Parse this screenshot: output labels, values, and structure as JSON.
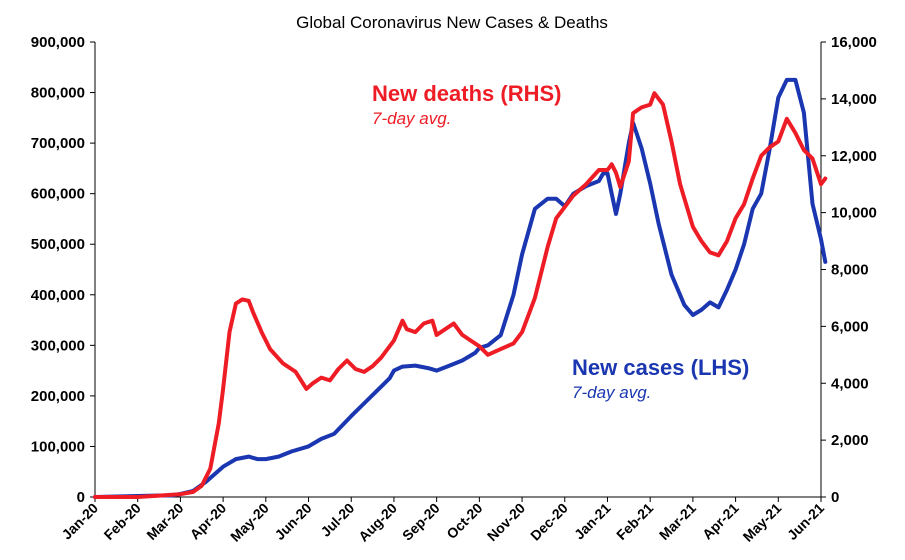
{
  "chart_data": {
    "type": "line",
    "title": "Global Coronavirus New Cases & Deaths",
    "x_labels": [
      "Jan-20",
      "Feb-20",
      "Mar-20",
      "Apr-20",
      "May-20",
      "Jun-20",
      "Jul-20",
      "Aug-20",
      "Sep-20",
      "Oct-20",
      "Nov-20",
      "Dec-20",
      "Jan-21",
      "Feb-21",
      "Mar-21",
      "Apr-21",
      "May-21",
      "Jun-21"
    ],
    "y_left": {
      "min": 0,
      "max": 900000,
      "ticks": [
        "0",
        "100,000",
        "200,000",
        "300,000",
        "400,000",
        "500,000",
        "600,000",
        "700,000",
        "800,000",
        "900,000"
      ]
    },
    "y_right": {
      "min": 0,
      "max": 16000,
      "ticks": [
        "0",
        "2,000",
        "4,000",
        "6,000",
        "8,000",
        "10,000",
        "12,000",
        "14,000",
        "16,000"
      ]
    },
    "grid": false,
    "series": [
      {
        "name": "New cases (LHS)",
        "subtitle": "7-day avg.",
        "axis": "left",
        "color": "#1a36b0",
        "x": [
          0,
          0.5,
          1,
          1.5,
          1.8,
          2,
          2.3,
          2.6,
          3,
          3.3,
          3.6,
          3.8,
          4,
          4.3,
          4.6,
          5,
          5.3,
          5.6,
          6,
          6.3,
          6.6,
          6.9,
          7,
          7.2,
          7.5,
          7.8,
          8,
          8.3,
          8.6,
          8.9,
          9,
          9.2,
          9.5,
          9.8,
          10,
          10.3,
          10.6,
          10.8,
          11,
          11.2,
          11.5,
          11.8,
          11.9,
          12,
          12.1,
          12.2,
          12.3,
          12.5,
          12.6,
          12.8,
          13,
          13.2,
          13.5,
          13.8,
          14,
          14.2,
          14.4,
          14.6,
          14.8,
          15,
          15.2,
          15.4,
          15.6,
          15.8,
          16,
          16.2,
          16.4,
          16.6,
          16.8,
          17,
          17.1
        ],
        "values": [
          0,
          1000,
          2000,
          3000,
          3000,
          6000,
          12000,
          30000,
          60000,
          75000,
          80000,
          75000,
          75000,
          80000,
          90000,
          100000,
          115000,
          125000,
          160000,
          185000,
          210000,
          235000,
          250000,
          258000,
          260000,
          255000,
          250000,
          260000,
          270000,
          285000,
          295000,
          300000,
          320000,
          400000,
          480000,
          570000,
          590000,
          590000,
          575000,
          600000,
          615000,
          625000,
          640000,
          640000,
          600000,
          560000,
          600000,
          700000,
          740000,
          690000,
          620000,
          540000,
          440000,
          380000,
          360000,
          370000,
          385000,
          375000,
          410000,
          450000,
          500000,
          570000,
          600000,
          690000,
          790000,
          825000,
          825000,
          760000,
          580000,
          510000,
          465000
        ]
      },
      {
        "name": "New deaths (RHS)",
        "subtitle": "7-day avg.",
        "axis": "right",
        "color": "#ee1c25",
        "x": [
          0,
          1,
          1.5,
          1.8,
          2,
          2.3,
          2.5,
          2.7,
          2.9,
          3,
          3.15,
          3.3,
          3.45,
          3.6,
          3.7,
          3.9,
          4.1,
          4.4,
          4.7,
          4.95,
          5.1,
          5.3,
          5.5,
          5.7,
          5.9,
          6.1,
          6.3,
          6.5,
          6.7,
          7,
          7.2,
          7.3,
          7.5,
          7.7,
          7.9,
          8,
          8.2,
          8.4,
          8.6,
          8.8,
          9,
          9.2,
          9.5,
          9.8,
          10,
          10.3,
          10.6,
          10.8,
          11,
          11.2,
          11.5,
          11.8,
          12,
          12.1,
          12.2,
          12.3,
          12.5,
          12.6,
          12.8,
          13,
          13.1,
          13.3,
          13.5,
          13.7,
          14,
          14.2,
          14.4,
          14.6,
          14.8,
          15,
          15.2,
          15.4,
          15.6,
          15.8,
          16,
          16.2,
          16.4,
          16.6,
          16.8,
          17,
          17.1
        ],
        "values": [
          0,
          0,
          50,
          80,
          100,
          180,
          400,
          1000,
          2600,
          3800,
          5800,
          6800,
          6950,
          6900,
          6500,
          5800,
          5200,
          4700,
          4400,
          3800,
          4000,
          4200,
          4100,
          4500,
          4800,
          4500,
          4400,
          4600,
          4900,
          5500,
          6200,
          5900,
          5800,
          6100,
          6200,
          5700,
          5900,
          6100,
          5700,
          5500,
          5300,
          5000,
          5200,
          5400,
          5800,
          7000,
          8800,
          9800,
          10200,
          10600,
          11000,
          11500,
          11500,
          11700,
          11400,
          10900,
          11800,
          13500,
          13700,
          13800,
          14200,
          13800,
          12500,
          11000,
          9500,
          9000,
          8600,
          8500,
          9000,
          9800,
          10300,
          11200,
          12000,
          12300,
          12500,
          13300,
          12800,
          12200,
          11900,
          11000,
          11200
        ]
      }
    ],
    "annotations": [
      {
        "text": "New deaths (RHS)",
        "sub": "7-day avg.",
        "color": "#ee1c25"
      },
      {
        "text": "New cases (LHS)",
        "sub": "7-day avg.",
        "color": "#1a36b0"
      }
    ]
  }
}
